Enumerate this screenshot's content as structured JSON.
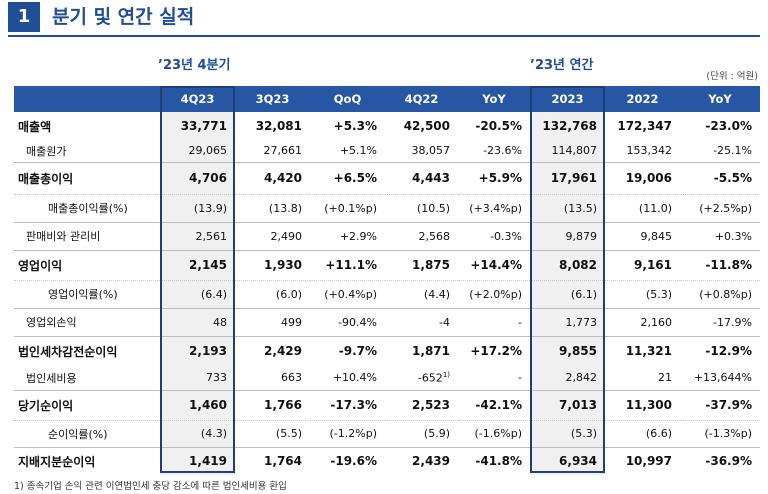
{
  "header": {
    "number": "1",
    "title": "분기 및 연간 실적"
  },
  "table": {
    "groups": [
      "’23년 4분기",
      "’23년 연간"
    ],
    "unit": "(단위 : 억원)",
    "columns": [
      "4Q23",
      "3Q23",
      "QoQ",
      "4Q22",
      "YoY",
      "2023",
      "2022",
      "YoY"
    ],
    "rows": [
      {
        "label": "매출액",
        "cells": [
          "33,771",
          "32,081",
          "+5.3%",
          "42,500",
          "-20.5%",
          "132,768",
          "172,347",
          "-23.0%"
        ]
      },
      {
        "label": "매출원가",
        "cells": [
          "29,065",
          "27,661",
          "+5.1%",
          "38,057",
          "-23.6%",
          "114,807",
          "153,342",
          "-25.1%"
        ]
      },
      {
        "label": "매출총이익",
        "cells": [
          "4,706",
          "4,420",
          "+6.5%",
          "4,443",
          "+5.9%",
          "17,961",
          "19,006",
          "-5.5%"
        ]
      },
      {
        "label": "매출총이익률(%)",
        "cells": [
          "(13.9)",
          "(13.8)",
          "(+0.1%p)",
          "(10.5)",
          "(+3.4%p)",
          "(13.5)",
          "(11.0)",
          "(+2.5%p)"
        ]
      },
      {
        "label": "판매비와 관리비",
        "cells": [
          "2,561",
          "2,490",
          "+2.9%",
          "2,568",
          "-0.3%",
          "9,879",
          "9,845",
          "+0.3%"
        ]
      },
      {
        "label": "영업이익",
        "cells": [
          "2,145",
          "1,930",
          "+11.1%",
          "1,875",
          "+14.4%",
          "8,082",
          "9,161",
          "-11.8%"
        ]
      },
      {
        "label": "영업이익률(%)",
        "cells": [
          "(6.4)",
          "(6.0)",
          "(+0.4%p)",
          "(4.4)",
          "(+2.0%p)",
          "(6.1)",
          "(5.3)",
          "(+0.8%p)"
        ]
      },
      {
        "label": "영업외손익",
        "cells": [
          "48",
          "499",
          "-90.4%",
          "-4",
          "-",
          "1,773",
          "2,160",
          "-17.9%"
        ]
      },
      {
        "label": "법인세차감전순이익",
        "cells": [
          "2,193",
          "2,429",
          "-9.7%",
          "1,871",
          "+17.2%",
          "9,855",
          "11,321",
          "-12.9%"
        ]
      },
      {
        "label": "법인세비용",
        "cells": [
          "733",
          "663",
          "+10.4%",
          {
            "text": "-652",
            "mark": "1)"
          },
          "-",
          "2,842",
          "21",
          "+13,644%"
        ]
      },
      {
        "label": "당기순이익",
        "cells": [
          "1,460",
          "1,766",
          "-17.3%",
          "2,523",
          "-42.1%",
          "7,013",
          "11,300",
          "-37.9%"
        ]
      },
      {
        "label": "순이익률(%)",
        "cells": [
          "(4.3)",
          "(5.5)",
          "(-1.2%p)",
          "(5.9)",
          "(-1.6%p)",
          "(5.3)",
          "(6.6)",
          "(-1.3%p)"
        ]
      },
      {
        "label": "지배지분순이익",
        "cells": [
          "1,419",
          "1,764",
          "-19.6%",
          "2,439",
          "-41.8%",
          "6,934",
          "10,997",
          "-36.9%"
        ]
      }
    ]
  },
  "footnote": "1) 종속기업 손익 관련 이연법인세 충당 감소에 따른 법인세비용 환입"
}
